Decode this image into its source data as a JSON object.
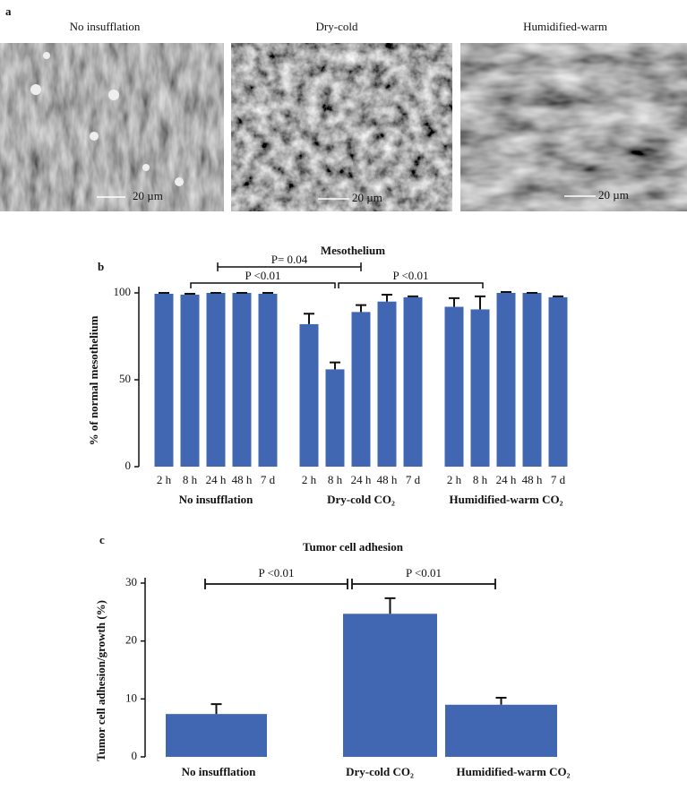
{
  "panel_a": {
    "label": "a",
    "images": [
      {
        "caption": "No insufflation",
        "scale_bar": "20 µm"
      },
      {
        "caption": "Dry-cold",
        "scale_bar": "20 µm"
      },
      {
        "caption": "Humidified-warm",
        "scale_bar": "20 µm"
      }
    ]
  },
  "chart_data": [
    {
      "type": "grouped_bar",
      "panel_label": "b",
      "title": "Mesothelium",
      "y_label": "% of normal mesothelium",
      "color": "#4267b2",
      "ylim": [
        0,
        100
      ],
      "yticks": [
        0,
        50,
        100
      ],
      "groups": [
        {
          "name": "No insufflation",
          "categories": [
            "2 h",
            "8 h",
            "24 h",
            "48 h",
            "7 d"
          ],
          "values": [
            99.5,
            99,
            100,
            100,
            99.5
          ],
          "errors": [
            0.5,
            0.5,
            0,
            0,
            0.5
          ]
        },
        {
          "name": "Dry-cold CO₂",
          "categories": [
            "2 h",
            "8 h",
            "24 h",
            "48 h",
            "7 d"
          ],
          "values": [
            82,
            56,
            89,
            95,
            97.5
          ],
          "errors": [
            6,
            4,
            4,
            4,
            0.5
          ]
        },
        {
          "name": "Humidified-warm CO₂",
          "categories": [
            "2 h",
            "8 h",
            "24 h",
            "48 h",
            "7 d"
          ],
          "values": [
            92,
            90.5,
            100,
            100,
            97.5
          ],
          "errors": [
            5,
            7.5,
            0.5,
            0,
            0.5
          ]
        }
      ],
      "annotations": [
        "P= 0.04",
        "P <0.01",
        "P <0.01"
      ]
    },
    {
      "type": "bar",
      "panel_label": "c",
      "title": "Tumor cell adhesion",
      "y_label": "Tumor cell adhesion/growth (%)",
      "color": "#4267b2",
      "ylim": [
        0,
        30
      ],
      "yticks": [
        0,
        10,
        20,
        30
      ],
      "categories": [
        "No insufflation",
        "Dry-cold CO₂",
        "Humidified-warm CO₂"
      ],
      "values": [
        7.4,
        24.7,
        9.0
      ],
      "errors": [
        1.7,
        2.7,
        1.2
      ],
      "annotations": [
        "P <0.01",
        "P <0.01"
      ]
    }
  ]
}
